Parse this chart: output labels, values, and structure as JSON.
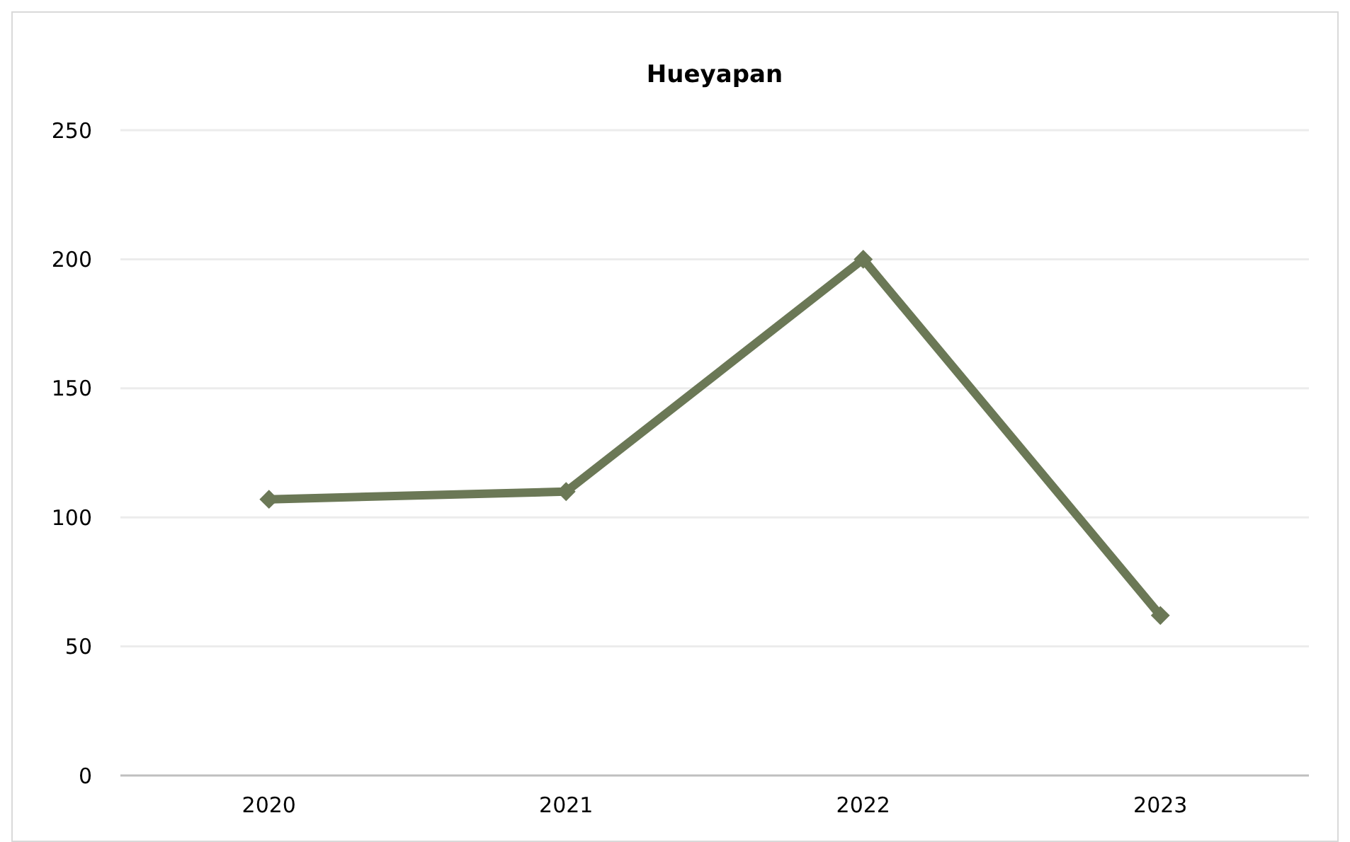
{
  "chart_data": {
    "type": "line",
    "title": "Hueyapan",
    "categories": [
      "2020",
      "2021",
      "2022",
      "2023"
    ],
    "series": [
      {
        "color": "#6b7856",
        "values": [
          107,
          110,
          200,
          62
        ]
      }
    ],
    "ylim": [
      0,
      250
    ],
    "yticks": [
      0,
      50,
      100,
      150,
      200,
      250
    ],
    "grid": "y",
    "marker": "diamond",
    "line_style": "solid"
  }
}
